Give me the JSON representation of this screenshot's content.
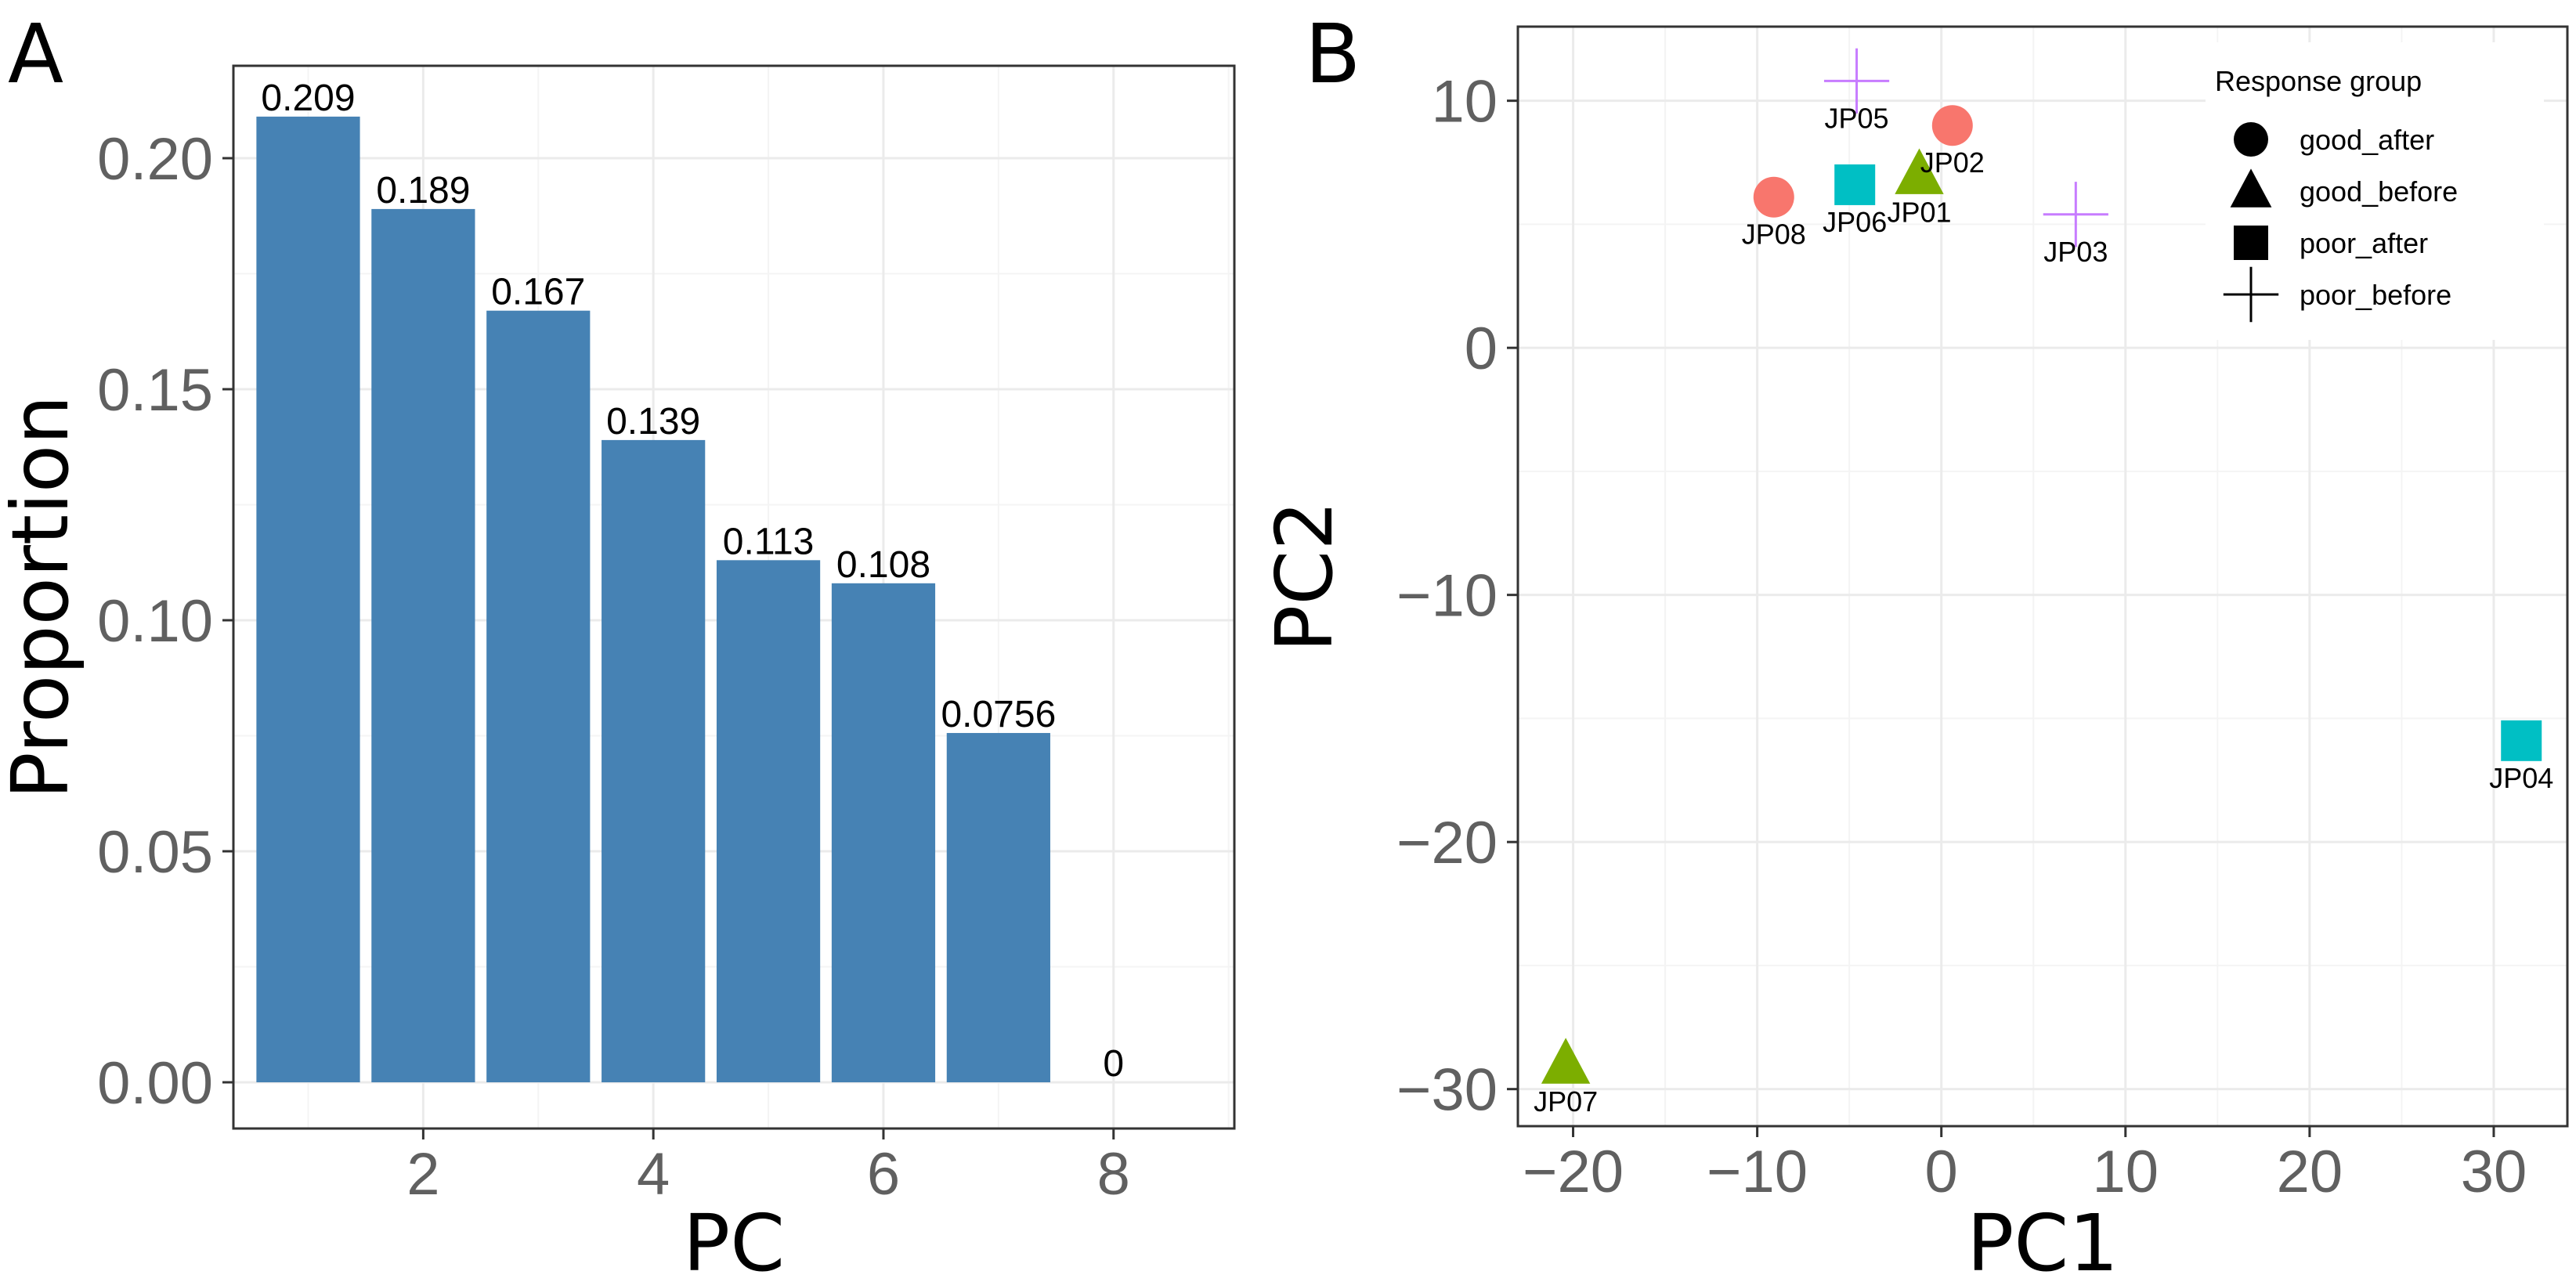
{
  "chart_data": [
    {
      "panel": "A",
      "type": "bar",
      "xlabel": "PC",
      "ylabel": "Proportion",
      "x": [
        1,
        2,
        3,
        4,
        5,
        6,
        7,
        8
      ],
      "values": [
        0.209,
        0.189,
        0.167,
        0.139,
        0.113,
        0.108,
        0.0756,
        0
      ],
      "value_labels": [
        "0.209",
        "0.189",
        "0.167",
        "0.139",
        "0.113",
        "0.108",
        "0.0756",
        "0"
      ],
      "xlim": [
        0.35,
        9.05
      ],
      "ylim": [
        -0.01,
        0.22
      ],
      "xticks": [
        2,
        4,
        6,
        8
      ],
      "xtick_labels": [
        "2",
        "4",
        "6",
        "8"
      ],
      "yticks": [
        0,
        0.05,
        0.1,
        0.15,
        0.2
      ],
      "ytick_labels": [
        "0.00",
        "0.05",
        "0.10",
        "0.15",
        "0.20"
      ],
      "bar_color": "#4682B4",
      "grid": true
    },
    {
      "panel": "B",
      "type": "scatter",
      "xlabel": "PC1",
      "ylabel": "PC2",
      "xlim": [
        -23,
        34
      ],
      "ylim": [
        -31.5,
        13
      ],
      "xticks": [
        -20,
        -10,
        0,
        10,
        20,
        30
      ],
      "xtick_labels": [
        "−20",
        "−10",
        "0",
        "10",
        "20",
        "30"
      ],
      "yticks": [
        -30,
        -20,
        -10,
        0,
        10
      ],
      "ytick_labels": [
        "−30",
        "−20",
        "−10",
        "0",
        "10"
      ],
      "grid": true,
      "legend": {
        "title": "Response group",
        "position": "top-right",
        "entries": [
          {
            "label": "good_after",
            "shape": "circle"
          },
          {
            "label": "good_before",
            "shape": "triangle"
          },
          {
            "label": "poor_after",
            "shape": "square"
          },
          {
            "label": "poor_before",
            "shape": "cross"
          }
        ]
      },
      "groups": [
        {
          "name": "good_after",
          "shape": "circle",
          "color": "#F8766D"
        },
        {
          "name": "good_before",
          "shape": "triangle",
          "color": "#7CAE00"
        },
        {
          "name": "poor_after",
          "shape": "square",
          "color": "#00BFC4"
        },
        {
          "name": "poor_before",
          "shape": "cross",
          "color": "#C77CFF"
        }
      ],
      "points": [
        {
          "label": "JP01",
          "group": "good_before",
          "x": -1.2,
          "y": 7.0
        },
        {
          "label": "JP02",
          "group": "good_after",
          "x": 0.6,
          "y": 9.0
        },
        {
          "label": "JP03",
          "group": "poor_before",
          "x": 7.3,
          "y": 5.4
        },
        {
          "label": "JP04",
          "group": "poor_after",
          "x": 31.5,
          "y": -15.9
        },
        {
          "label": "JP05",
          "group": "poor_before",
          "x": -4.6,
          "y": 10.8
        },
        {
          "label": "JP06",
          "group": "poor_after",
          "x": -4.7,
          "y": 6.6
        },
        {
          "label": "JP07",
          "group": "good_before",
          "x": -20.4,
          "y": -29.0
        },
        {
          "label": "JP08",
          "group": "good_after",
          "x": -9.1,
          "y": 6.1
        }
      ]
    }
  ],
  "panels": {
    "a_letter": "A",
    "b_letter": "B"
  }
}
